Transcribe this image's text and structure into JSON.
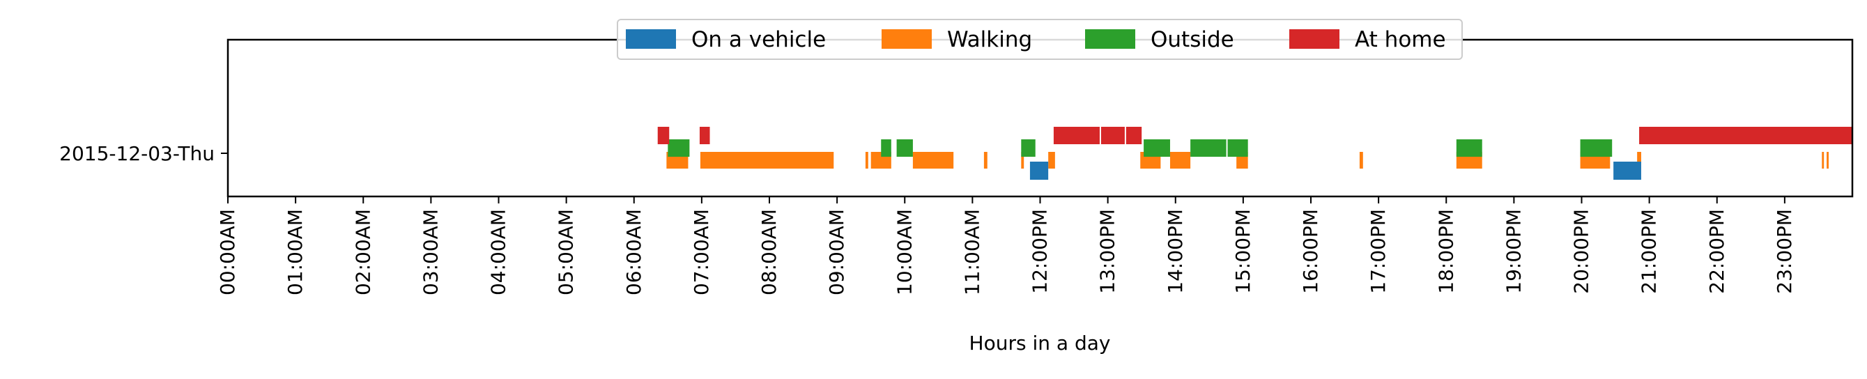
{
  "chart_data": {
    "type": "timeline",
    "title": "",
    "xlabel": "Hours in a day",
    "ylabel": "",
    "xlim": [
      0,
      24
    ],
    "grid": false,
    "legend_position": "top-center",
    "categories": [
      "2015-12-03-Thu"
    ],
    "x_tick_labels": [
      "00:00AM",
      "01:00AM",
      "02:00AM",
      "03:00AM",
      "04:00AM",
      "05:00AM",
      "06:00AM",
      "07:00AM",
      "08:00AM",
      "09:00AM",
      "10:00AM",
      "11:00AM",
      "12:00PM",
      "13:00PM",
      "14:00PM",
      "15:00PM",
      "16:00PM",
      "17:00PM",
      "18:00PM",
      "19:00PM",
      "20:00PM",
      "21:00PM",
      "22:00PM",
      "23:00PM"
    ],
    "series": [
      {
        "name": "On a vehicle",
        "color": "#1f77b4",
        "lane": "bottom",
        "intervals": [
          [
            11.85,
            12.12
          ],
          [
            20.47,
            20.88
          ]
        ]
      },
      {
        "name": "Walking",
        "color": "#ff7f0e",
        "lane": "low",
        "intervals": [
          [
            6.48,
            6.8
          ],
          [
            6.98,
            8.95
          ],
          [
            9.42,
            9.46
          ],
          [
            9.5,
            9.8
          ],
          [
            10.12,
            10.72
          ],
          [
            11.17,
            11.22
          ],
          [
            11.72,
            11.76
          ],
          [
            12.12,
            12.22
          ],
          [
            13.48,
            13.78
          ],
          [
            13.92,
            14.22
          ],
          [
            14.9,
            15.07
          ],
          [
            16.72,
            16.77
          ],
          [
            18.15,
            18.53
          ],
          [
            19.98,
            20.42
          ],
          [
            20.82,
            20.88
          ],
          [
            23.55,
            23.58
          ],
          [
            23.62,
            23.65
          ]
        ]
      },
      {
        "name": "Outside",
        "color": "#2ca02c",
        "lane": "mid",
        "intervals": [
          [
            6.5,
            6.82
          ],
          [
            9.65,
            9.8
          ],
          [
            9.88,
            10.12
          ],
          [
            11.72,
            11.93
          ],
          [
            13.53,
            13.92
          ],
          [
            14.22,
            14.75
          ],
          [
            14.77,
            15.07
          ],
          [
            18.15,
            18.53
          ],
          [
            19.98,
            20.45
          ]
        ]
      },
      {
        "name": "At home",
        "color": "#d62728",
        "lane": "top",
        "intervals": [
          [
            6.35,
            6.52
          ],
          [
            6.97,
            7.12
          ],
          [
            12.2,
            12.88
          ],
          [
            12.9,
            13.25
          ],
          [
            13.27,
            13.5
          ],
          [
            20.85,
            24.0
          ]
        ]
      }
    ]
  }
}
